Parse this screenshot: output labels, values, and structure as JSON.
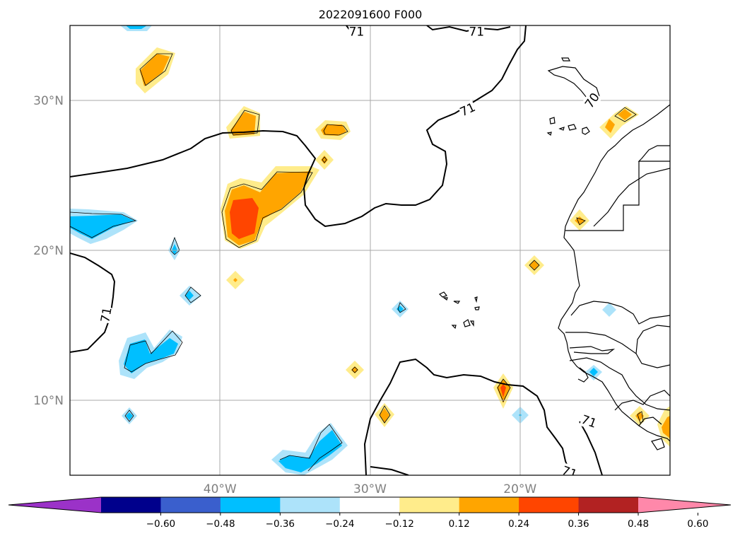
{
  "title": "2022091600 F000",
  "map": {
    "lon_range": [
      -50,
      -10
    ],
    "lat_range": [
      5,
      35
    ],
    "lat_ticks": [
      {
        "value": 30,
        "label": "30°N"
      },
      {
        "value": 20,
        "label": "20°N"
      },
      {
        "value": 10,
        "label": "10°N"
      }
    ],
    "lon_ticks": [
      {
        "value": -40,
        "label": "40°W"
      },
      {
        "value": -30,
        "label": "30°W"
      },
      {
        "value": -20,
        "label": "20°W"
      }
    ],
    "contour_labels": [
      {
        "text": "71",
        "lon": -30.9,
        "lat": 34.6,
        "rot": 0
      },
      {
        "text": "71",
        "lon": -22.9,
        "lat": 34.6,
        "rot": 0
      },
      {
        "text": "71",
        "lon": -23.5,
        "lat": 29.4,
        "rot": -25
      },
      {
        "text": "70",
        "lon": -15.2,
        "lat": 30.0,
        "rot": -55
      },
      {
        "text": "71",
        "lon": -47.6,
        "lat": 15.7,
        "rot": -80
      },
      {
        "text": "71",
        "lon": -15.4,
        "lat": 8.6,
        "rot": 20
      },
      {
        "text": "71",
        "lon": -16.7,
        "lat": 5.2,
        "rot": 20
      }
    ]
  },
  "colorbar": {
    "tick_labels": [
      "−0.60",
      "−0.48",
      "−0.36",
      "−0.24",
      "−0.12",
      "0.12",
      "0.24",
      "0.36",
      "0.48",
      "0.60"
    ],
    "colors": [
      "#9b32c8",
      "#00008c",
      "#3a5fcd",
      "#00bfff",
      "#ade3fa",
      "#ffffff",
      "#ffec8b",
      "#ffa500",
      "#ff4500",
      "#b22222",
      "#ff88aa"
    ]
  }
}
